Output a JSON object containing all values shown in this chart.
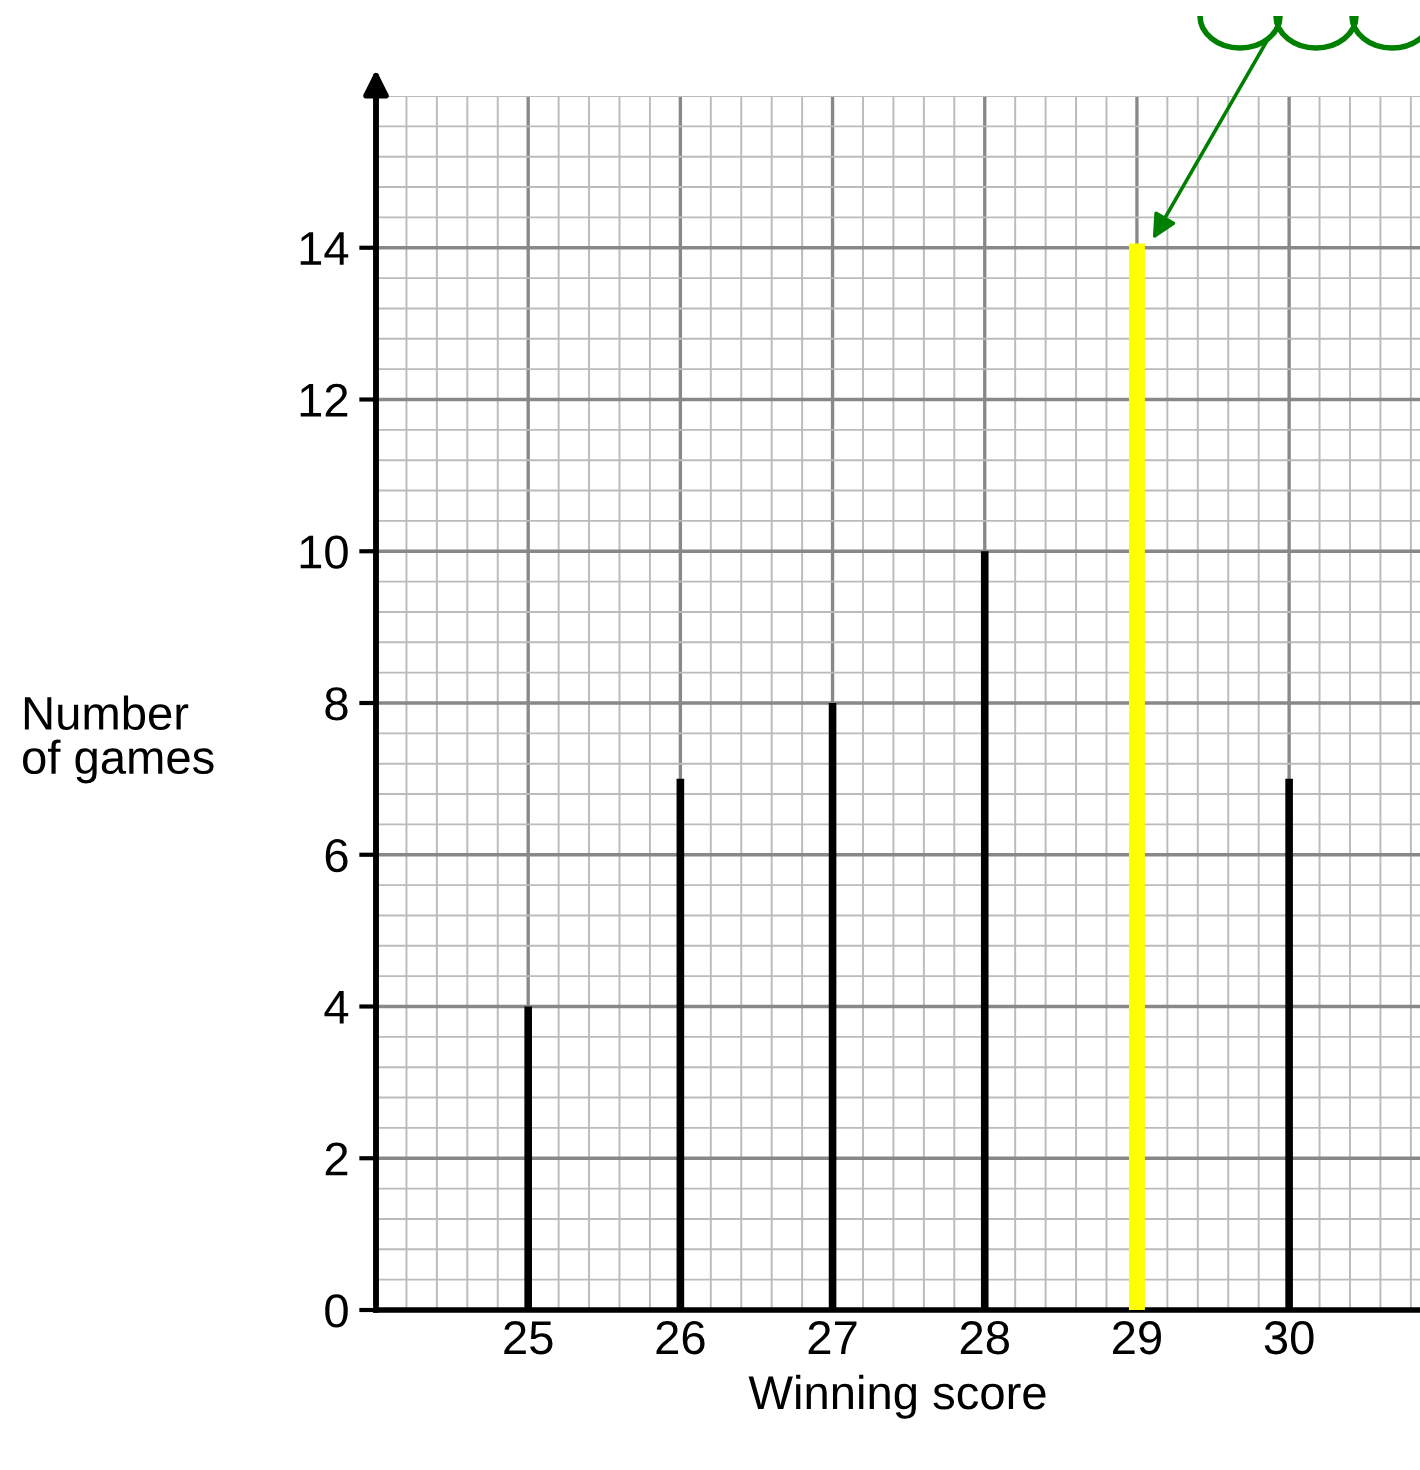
{
  "chart_data": {
    "type": "bar",
    "xlabel": "Winning score",
    "ylabel": "Number of games",
    "x": [
      25,
      26,
      27,
      28,
      29,
      30
    ],
    "series": [
      {
        "color": "#000000",
        "colors": [
          "#000000",
          "#000000",
          "#000000",
          "#000000",
          "#ffff00",
          "#000000"
        ],
        "values": [
          4,
          7,
          8,
          10,
          14,
          7
        ]
      }
    ],
    "xlim": [
      24,
      30.86
    ],
    "xticks": [
      25,
      26,
      27,
      28,
      29,
      30
    ],
    "ylim": [
      0,
      16
    ],
    "yticks": [
      0,
      2,
      4,
      6,
      8,
      10,
      12,
      14
    ],
    "grid": true
  }
}
